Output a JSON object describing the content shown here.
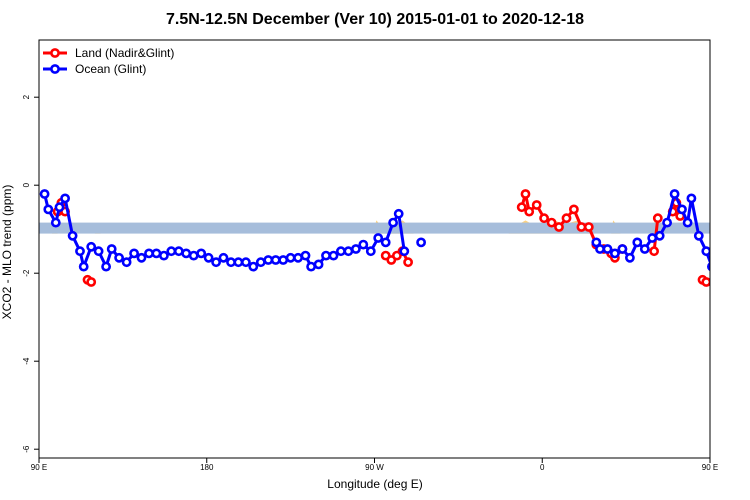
{
  "chart_data": {
    "type": "line",
    "title": "7.5N-12.5N December (Ver 10)   2015-01-01 to 2020-12-18",
    "xlabel": "Longitude (deg E)",
    "ylabel": "XCO2 - MLO trend (ppm)",
    "xlim": [
      90,
      450
    ],
    "ylim": [
      -6.2,
      3.3
    ],
    "x_ticks": [
      {
        "value": 90,
        "label": "90 E"
      },
      {
        "value": 180,
        "label": "180"
      },
      {
        "value": 270,
        "label": "90 W"
      },
      {
        "value": 360,
        "label": "0"
      },
      {
        "value": 450,
        "label": "90 E"
      }
    ],
    "y_ticks": [
      {
        "value": 2,
        "label": "2"
      },
      {
        "value": 0,
        "label": "0"
      },
      {
        "value": -2,
        "label": "-2"
      },
      {
        "value": -4,
        "label": "-4"
      },
      {
        "value": -6,
        "label": "-6"
      }
    ],
    "reference_band": {
      "ymin": -1.1,
      "ymax": -0.85,
      "color": "#a6bddb"
    },
    "land_fraction_fill": {
      "color": "#ffd27f",
      "points": [
        [
          97,
          -1.1
        ],
        [
          98,
          -0.95
        ],
        [
          99,
          -0.85
        ],
        [
          100,
          -1.1
        ],
        [
          120,
          -1.1
        ],
        [
          121,
          -0.9
        ],
        [
          122,
          -0.95
        ],
        [
          123,
          -1.1
        ],
        [
          269,
          -1.1
        ],
        [
          271,
          -0.8
        ],
        [
          274,
          -0.95
        ],
        [
          276,
          -0.9
        ],
        [
          279,
          -0.8
        ],
        [
          282,
          -0.9
        ],
        [
          285,
          -0.8
        ],
        [
          288,
          -0.9
        ],
        [
          291,
          -1.1
        ],
        [
          342,
          -1.1
        ],
        [
          344,
          -0.95
        ],
        [
          347,
          -0.9
        ],
        [
          351,
          -0.8
        ],
        [
          355,
          -0.9
        ],
        [
          359,
          -0.85
        ],
        [
          363,
          -0.9
        ],
        [
          367,
          -0.8
        ],
        [
          371,
          -0.9
        ],
        [
          375,
          -0.85
        ],
        [
          379,
          -0.8
        ],
        [
          383,
          -0.9
        ],
        [
          387,
          -1.1
        ],
        [
          397,
          -1.1
        ],
        [
          398,
          -0.8
        ],
        [
          400,
          -0.9
        ],
        [
          402,
          -1.1
        ],
        [
          418,
          -1.1
        ],
        [
          419,
          -0.9
        ],
        [
          421,
          -0.8
        ],
        [
          423,
          -1.1
        ],
        [
          458,
          -1.1
        ],
        [
          460,
          -0.9
        ],
        [
          462,
          -1.1
        ]
      ]
    },
    "legend": {
      "position": "top-left"
    },
    "series": [
      {
        "name": "Land (Nadir&Glint)",
        "color": "#ff0000",
        "segments": [
          [
            [
              100,
              -0.6
            ],
            [
              102,
              -0.4
            ],
            [
              104,
              -0.6
            ]
          ],
          [
            [
              116,
              -2.15
            ],
            [
              118,
              -2.2
            ]
          ],
          [
            [
              276,
              -1.6
            ],
            [
              279,
              -1.7
            ],
            [
              282,
              -1.6
            ],
            [
              285,
              -1.5
            ],
            [
              288,
              -1.75
            ]
          ],
          [
            [
              349,
              -0.5
            ],
            [
              351,
              -0.2
            ],
            [
              353,
              -0.6
            ],
            [
              357,
              -0.45
            ],
            [
              361,
              -0.75
            ],
            [
              365,
              -0.85
            ],
            [
              369,
              -0.95
            ],
            [
              373,
              -0.75
            ],
            [
              377,
              -0.55
            ],
            [
              381,
              -0.95
            ],
            [
              385,
              -0.95
            ],
            [
              389,
              -1.35
            ],
            [
              393,
              -1.45
            ],
            [
              397,
              -1.55
            ],
            [
              399,
              -1.65
            ],
            [
              403,
              -1.45
            ]
          ],
          [
            [
              420,
              -1.5
            ],
            [
              422,
              -0.75
            ]
          ],
          [
            [
              430,
              -0.6
            ],
            [
              432,
              -0.4
            ],
            [
              434,
              -0.7
            ]
          ],
          [
            [
              446,
              -2.15
            ],
            [
              448,
              -2.2
            ]
          ]
        ]
      },
      {
        "name": "Ocean (Glint)",
        "color": "#0000ff",
        "segments": [
          [
            [
              93,
              -0.2
            ],
            [
              95,
              -0.55
            ],
            [
              99,
              -0.85
            ],
            [
              101,
              -0.5
            ],
            [
              104,
              -0.3
            ],
            [
              108,
              -1.15
            ],
            [
              112,
              -1.5
            ],
            [
              114,
              -1.85
            ],
            [
              118,
              -1.4
            ],
            [
              122,
              -1.5
            ],
            [
              126,
              -1.85
            ],
            [
              129,
              -1.45
            ],
            [
              133,
              -1.65
            ],
            [
              137,
              -1.75
            ],
            [
              141,
              -1.55
            ],
            [
              145,
              -1.65
            ],
            [
              149,
              -1.55
            ],
            [
              153,
              -1.55
            ],
            [
              157,
              -1.6
            ],
            [
              161,
              -1.5
            ],
            [
              165,
              -1.5
            ],
            [
              169,
              -1.55
            ],
            [
              173,
              -1.6
            ],
            [
              177,
              -1.55
            ],
            [
              181,
              -1.65
            ],
            [
              185,
              -1.75
            ],
            [
              189,
              -1.65
            ],
            [
              193,
              -1.75
            ],
            [
              197,
              -1.75
            ],
            [
              201,
              -1.75
            ],
            [
              205,
              -1.85
            ],
            [
              209,
              -1.75
            ],
            [
              213,
              -1.7
            ],
            [
              217,
              -1.7
            ],
            [
              221,
              -1.7
            ],
            [
              225,
              -1.65
            ],
            [
              229,
              -1.65
            ],
            [
              233,
              -1.6
            ],
            [
              236,
              -1.85
            ],
            [
              240,
              -1.8
            ],
            [
              244,
              -1.6
            ],
            [
              248,
              -1.6
            ],
            [
              252,
              -1.5
            ],
            [
              256,
              -1.5
            ],
            [
              260,
              -1.45
            ],
            [
              264,
              -1.35
            ],
            [
              268,
              -1.5
            ],
            [
              272,
              -1.2
            ],
            [
              276,
              -1.3
            ],
            [
              280,
              -0.85
            ],
            [
              283,
              -0.65
            ],
            [
              286,
              -1.5
            ]
          ],
          [
            [
              295,
              -1.3
            ]
          ],
          [
            [
              389,
              -1.3
            ],
            [
              391,
              -1.45
            ],
            [
              395,
              -1.45
            ],
            [
              399,
              -1.55
            ],
            [
              403,
              -1.45
            ],
            [
              407,
              -1.65
            ],
            [
              411,
              -1.3
            ],
            [
              415,
              -1.45
            ],
            [
              419,
              -1.2
            ],
            [
              423,
              -1.15
            ],
            [
              427,
              -0.85
            ],
            [
              431,
              -0.2
            ],
            [
              435,
              -0.55
            ],
            [
              438,
              -0.85
            ],
            [
              440,
              -0.3
            ],
            [
              444,
              -1.15
            ],
            [
              448,
              -1.5
            ],
            [
              451,
              -1.85
            ],
            [
              455,
              -1.4
            ],
            [
              459,
              -1.5
            ],
            [
              463,
              -1.85
            ],
            [
              466,
              -1.45
            ],
            [
              470,
              -1.65
            ],
            [
              474,
              -1.75
            ],
            [
              478,
              -1.55
            ],
            [
              482,
              -1.65
            ],
            [
              486,
              -1.55
            ],
            [
              490,
              -1.55
            ],
            [
              494,
              -1.6
            ]
          ]
        ]
      }
    ]
  }
}
